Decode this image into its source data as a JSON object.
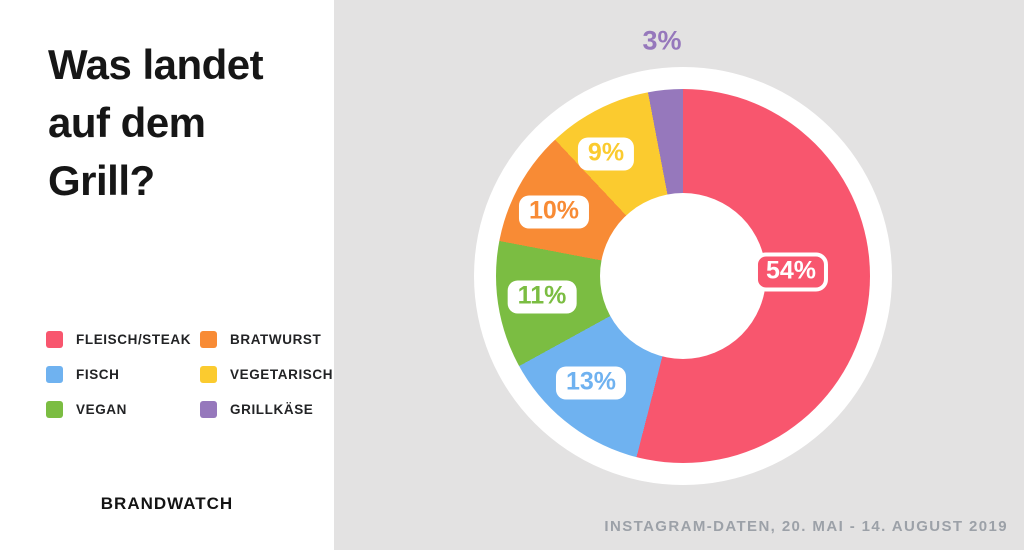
{
  "left_panel": {
    "title": "Was landet auf dem Grill?",
    "brand": "BRANDWATCH"
  },
  "legend": {
    "items": [
      {
        "label": "FLEISCH/STEAK",
        "color": "#F8566E"
      },
      {
        "label": "FISCH",
        "color": "#6FB2F0"
      },
      {
        "label": "VEGAN",
        "color": "#7BBD42"
      },
      {
        "label": "BRATWURST",
        "color": "#F88B35"
      },
      {
        "label": "VEGETARISCH",
        "color": "#FBCB2F"
      },
      {
        "label": "GRILLKÄSE",
        "color": "#9678BC"
      }
    ]
  },
  "chart_data": {
    "type": "pie",
    "donut": true,
    "title": "Was landet auf dem Grill?",
    "direction": "clockwise",
    "start_angle_deg": 0,
    "total": 100,
    "legend_position": "left-panel",
    "segments": [
      {
        "name": "Fleisch/Steak",
        "value": 54,
        "label": "54%",
        "color": "#F8566E"
      },
      {
        "name": "Fisch",
        "value": 13,
        "label": "13%",
        "color": "#6FB2F0"
      },
      {
        "name": "Vegan",
        "value": 11,
        "label": "11%",
        "color": "#7BBD42"
      },
      {
        "name": "Bratwurst",
        "value": 10,
        "label": "10%",
        "color": "#F88B35"
      },
      {
        "name": "Vegetarisch",
        "value": 9,
        "label": "9%",
        "color": "#FBCB2F"
      },
      {
        "name": "Grillkäse",
        "value": 3,
        "label": "3%",
        "color": "#9678BC"
      }
    ]
  },
  "footer": {
    "caption": "INSTAGRAM-DATEN, 20. MAI - 14. AUGUST 2019"
  }
}
